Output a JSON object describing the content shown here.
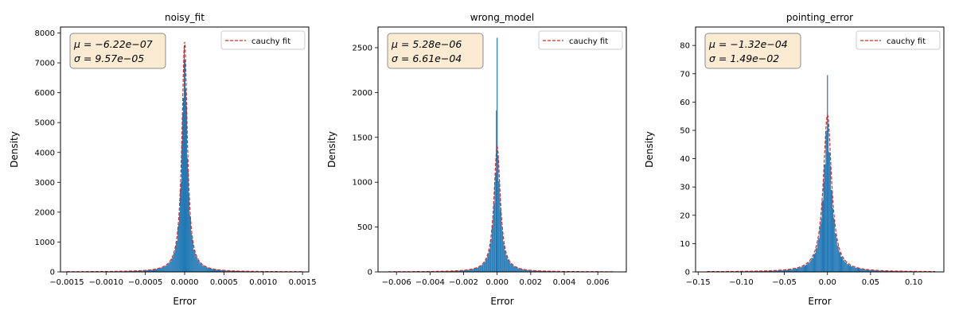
{
  "figure": {
    "colors": {
      "hist": "#1f77b4",
      "fit": "#d62728",
      "statbox_fill": "#fbebd3",
      "statbox_edge": "#8c8c8c"
    }
  },
  "chart_data": [
    {
      "type": "histogram",
      "title": "noisy_fit",
      "xlabel": "Error",
      "ylabel": "Density",
      "xlim": [
        -0.00158,
        0.00158
      ],
      "ylim": [
        0,
        8200
      ],
      "xticks": [
        -0.0015,
        -0.001,
        -0.0005,
        0,
        0.0005,
        0.001,
        0.0015
      ],
      "xtick_labels": [
        "−0.0015",
        "−0.0010",
        "−0.0005",
        "0.0000",
        "0.0005",
        "0.0010",
        "0.0015"
      ],
      "yticks": [
        0,
        1000,
        2000,
        3000,
        4000,
        5000,
        6000,
        7000,
        8000
      ],
      "ytick_labels": [
        "0",
        "1000",
        "2000",
        "3000",
        "4000",
        "5000",
        "6000",
        "7000",
        "8000"
      ],
      "stats": {
        "mu_label": "μ = −6.22e−07",
        "sigma_label": "σ = 9.57e−05"
      },
      "legend": {
        "label": "cauchy fit",
        "location": "upper right"
      },
      "fit": {
        "distribution": "cauchy",
        "loc": 0.0,
        "peak": 7700
      },
      "hist": {
        "range": [
          -0.0015,
          0.0015
        ],
        "bins": 300,
        "peak": 7100
      }
    },
    {
      "type": "histogram",
      "title": "wrong_model",
      "xlabel": "Error",
      "ylabel": "Density",
      "xlim": [
        -0.0071,
        0.0077
      ],
      "ylim": [
        0,
        2730
      ],
      "xticks": [
        -0.006,
        -0.004,
        -0.002,
        0,
        0.002,
        0.004,
        0.006
      ],
      "xtick_labels": [
        "−0.006",
        "−0.004",
        "−0.002",
        "0.000",
        "0.002",
        "0.004",
        "0.006"
      ],
      "yticks": [
        0,
        500,
        1000,
        1500,
        2000,
        2500
      ],
      "ytick_labels": [
        "0",
        "500",
        "1000",
        "1500",
        "2000",
        "2500"
      ],
      "stats": {
        "mu_label": "μ = 5.28e−06",
        "sigma_label": "σ = 6.61e−04"
      },
      "legend": {
        "label": "cauchy fit",
        "location": "upper right"
      },
      "fit": {
        "distribution": "cauchy",
        "loc": 0.0,
        "peak": 1400
      },
      "hist": {
        "range": [
          -0.0065,
          0.007
        ],
        "bins": 400,
        "peak": 1300,
        "spikes": [
          [
            0.0,
            2610
          ],
          [
            -4e-05,
            1800
          ]
        ]
      }
    },
    {
      "type": "histogram",
      "title": "pointing_error",
      "xlabel": "Error",
      "ylabel": "Density",
      "xlim": [
        -0.153,
        0.135
      ],
      "ylim": [
        0,
        86.5
      ],
      "xticks": [
        -0.15,
        -0.1,
        -0.05,
        0,
        0.05,
        0.1
      ],
      "xtick_labels": [
        "−0.15",
        "−0.10",
        "−0.05",
        "0.00",
        "0.05",
        "0.10"
      ],
      "yticks": [
        0,
        10,
        20,
        30,
        40,
        50,
        60,
        70,
        80
      ],
      "ytick_labels": [
        "0",
        "10",
        "20",
        "30",
        "40",
        "50",
        "60",
        "70",
        "80"
      ],
      "stats": {
        "mu_label": "μ = −1.32e−04",
        "sigma_label": "σ = 1.49e−02"
      },
      "legend": {
        "label": "cauchy fit",
        "location": "upper right"
      },
      "fit": {
        "distribution": "cauchy",
        "loc": 0.0,
        "peak": 55.5
      },
      "hist": {
        "range": [
          -0.14,
          0.125
        ],
        "bins": 300,
        "peak": 50,
        "spikes": [
          [
            0.0,
            69.5
          ]
        ]
      }
    }
  ]
}
